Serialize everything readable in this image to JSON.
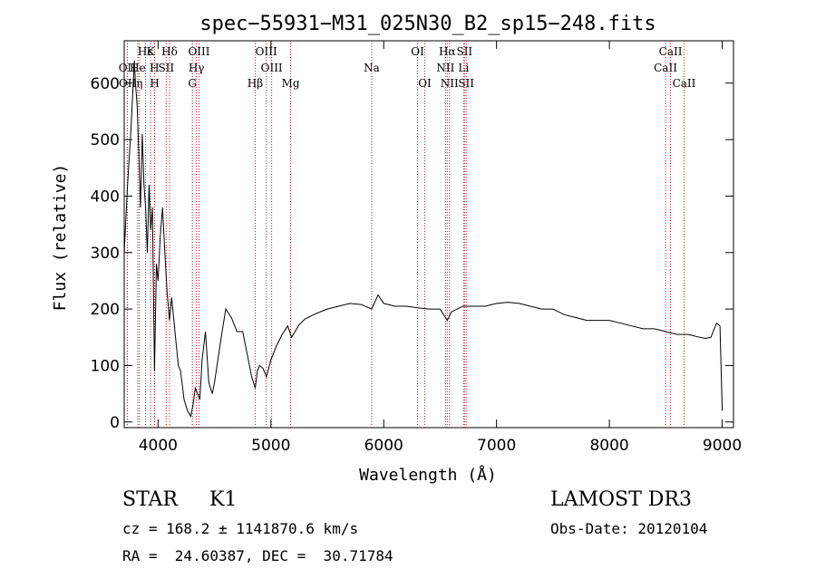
{
  "chart_data": {
    "type": "line",
    "title": "spec−55931−M31_025N30_B2_sp15−248.fits",
    "xlabel": "Wavelength (Å)",
    "ylabel": "Flux (relative)",
    "xlim": [
      3700,
      9100
    ],
    "ylim": [
      -10,
      675
    ],
    "xticks": [
      4000,
      5000,
      6000,
      7000,
      8000,
      9000
    ],
    "yticks": [
      0,
      100,
      200,
      300,
      400,
      500,
      600
    ],
    "grid": false,
    "series": [
      {
        "color": "#000000",
        "x": [
          3700,
          3730,
          3760,
          3790,
          3800,
          3815,
          3830,
          3845,
          3860,
          3875,
          3890,
          3905,
          3920,
          3935,
          3950,
          3968,
          3985,
          4000,
          4020,
          4040,
          4060,
          4080,
          4101,
          4120,
          4140,
          4160,
          4180,
          4200,
          4230,
          4260,
          4290,
          4310,
          4330,
          4350,
          4370,
          4390,
          4420,
          4450,
          4480,
          4500,
          4530,
          4560,
          4600,
          4650,
          4700,
          4750,
          4800,
          4830,
          4861,
          4880,
          4900,
          4930,
          4960,
          5000,
          5050,
          5100,
          5150,
          5183,
          5250,
          5300,
          5400,
          5500,
          5600,
          5700,
          5800,
          5893,
          5950,
          6000,
          6100,
          6200,
          6300,
          6400,
          6500,
          6563,
          6600,
          6700,
          6800,
          6900,
          7000,
          7100,
          7200,
          7300,
          7400,
          7500,
          7600,
          7700,
          7800,
          7900,
          8000,
          8100,
          8200,
          8300,
          8400,
          8500,
          8600,
          8700,
          8800,
          8850,
          8900,
          8950,
          8980,
          9000
        ],
        "values": [
          300,
          420,
          520,
          640,
          600,
          560,
          470,
          380,
          510,
          420,
          380,
          300,
          420,
          340,
          380,
          90,
          280,
          250,
          330,
          380,
          300,
          230,
          180,
          220,
          180,
          140,
          100,
          90,
          40,
          20,
          10,
          30,
          60,
          50,
          40,
          110,
          160,
          70,
          50,
          70,
          110,
          150,
          200,
          185,
          160,
          160,
          110,
          80,
          60,
          90,
          100,
          95,
          80,
          110,
          135,
          155,
          170,
          150,
          172,
          182,
          192,
          200,
          205,
          210,
          208,
          200,
          225,
          210,
          205,
          205,
          202,
          200,
          200,
          180,
          195,
          205,
          205,
          205,
          210,
          212,
          210,
          205,
          200,
          200,
          190,
          185,
          180,
          180,
          180,
          175,
          170,
          165,
          165,
          160,
          155,
          155,
          150,
          148,
          150,
          175,
          170,
          20
        ]
      }
    ],
    "lines": [
      {
        "name": "Hϵ",
        "wave": 3889,
        "row": 1
      },
      {
        "name": "K",
        "wave": 3934,
        "row": 1
      },
      {
        "name": "Hδ",
        "wave": 4102,
        "row": 1
      },
      {
        "name": "OIII",
        "wave": 4363,
        "row": 1
      },
      {
        "name": "OIII",
        "wave": 4959,
        "row": 1
      },
      {
        "name": "OI",
        "wave": 6300,
        "row": 1
      },
      {
        "name": "Hα",
        "wave": 6563,
        "row": 1
      },
      {
        "name": "SII",
        "wave": 6716,
        "row": 1
      },
      {
        "name": "CaII",
        "wave": 8542,
        "row": 1
      },
      {
        "name": "OII",
        "wave": 3727,
        "row": 2
      },
      {
        "name": "He",
        "wave": 3820,
        "row": 2
      },
      {
        "name": "H",
        "wave": 3968,
        "row": 2
      },
      {
        "name": "SII",
        "wave": 4072,
        "row": 2
      },
      {
        "name": "Hγ",
        "wave": 4340,
        "row": 2
      },
      {
        "name": "OIII",
        "wave": 5007,
        "row": 2
      },
      {
        "name": "NII",
        "wave": 6548,
        "row": 2
      },
      {
        "name": "Li",
        "wave": 6708,
        "row": 2
      },
      {
        "name": "CaII",
        "wave": 8498,
        "row": 2
      },
      {
        "name": "OII",
        "wave": 3729,
        "row": 3
      },
      {
        "name": "η",
        "wave": 3835,
        "row": 3
      },
      {
        "name": "H",
        "wave": 3970,
        "row": 3
      },
      {
        "name": "G",
        "wave": 4304,
        "row": 3
      },
      {
        "name": "Hβ",
        "wave": 4861,
        "row": 3
      },
      {
        "name": "Mg",
        "wave": 5175,
        "row": 3
      },
      {
        "name": "Na",
        "wave": 5893,
        "row": 2
      },
      {
        "name": "OI",
        "wave": 6364,
        "row": 3
      },
      {
        "name": "NII",
        "wave": 6583,
        "row": 3
      },
      {
        "name": "SII",
        "wave": 6731,
        "row": 3
      },
      {
        "name": "CaII",
        "wave": 8662,
        "row": 3
      }
    ]
  },
  "info": {
    "object": "STAR     K1",
    "survey": "LAMOST DR3",
    "velocity": "cz = 168.2 ± 1141870.6 km/s",
    "obs_date": "Obs-Date: 20120104",
    "coords": "RA =  24.60387, DEC =  30.71784"
  }
}
